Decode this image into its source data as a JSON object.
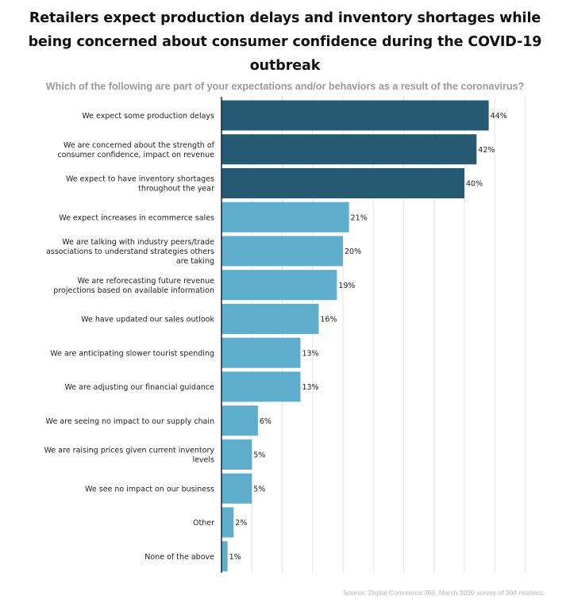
{
  "chart_data": {
    "type": "bar",
    "orientation": "horizontal",
    "title": "Retailers expect production delays and inventory shortages while being concerned about consumer confidence during the COVID-19 outbreak",
    "title_lines": [
      "Retailers expect production delays and inventory shortages while",
      "being concerned about consumer confidence during the COVID-19 outbreak"
    ],
    "subtitle": "Which of the following are part of your expectations and/or behaviors as a result of the coronavirus?",
    "source": "Source: Digital Commerce 360, March 2020 survey of 304 retailers.",
    "value_suffix": "%",
    "xlim": [
      0,
      50
    ],
    "grid": true,
    "categories": [
      "We expect some production delays",
      "We are concerned about the strength of consumer confidence, impact on revenue",
      "We expect to have inventory shortages throughout the year",
      "We expect increases in ecommerce sales",
      "We are talking with industry peers/trade associations to understand strategies others are taking",
      "We are reforecasting future revenue projections based on available information",
      "We have updated our sales outlook",
      "We are anticipating slower tourist spending",
      "We are adjusting our financial guidance",
      "We are seeing no impact to our supply chain",
      "We are raising prices given current inventory levels",
      "We see no impact on our business",
      "Other",
      "None of the above"
    ],
    "category_lines": [
      [
        "We expect some production delays"
      ],
      [
        "We are concerned about the strength of",
        "consumer confidence, impact on revenue"
      ],
      [
        "We expect to have inventory shortages",
        "throughout the year"
      ],
      [
        "We expect increases in ecommerce sales"
      ],
      [
        "We are talking with industry peers/trade",
        "associations to understand strategies others",
        "are taking"
      ],
      [
        "We are reforecasting future revenue",
        "projections based on available information"
      ],
      [
        "We have updated our sales outlook"
      ],
      [
        "We are anticipating slower tourist spending"
      ],
      [
        "We are adjusting our financial guidance"
      ],
      [
        "We are seeing no impact to our supply chain"
      ],
      [
        "We are raising prices given current inventory",
        "levels"
      ],
      [
        "We see no impact on our business"
      ],
      [
        "Other"
      ],
      [
        "None of the above"
      ]
    ],
    "values": [
      44,
      42,
      40,
      21,
      20,
      19,
      16,
      13,
      13,
      6,
      5,
      5,
      2,
      1
    ],
    "highlight_count": 3,
    "colors": {
      "highlight": "#265a73",
      "normal": "#5daecd",
      "grid": "#e6e6e6",
      "axis": "#222222"
    }
  }
}
